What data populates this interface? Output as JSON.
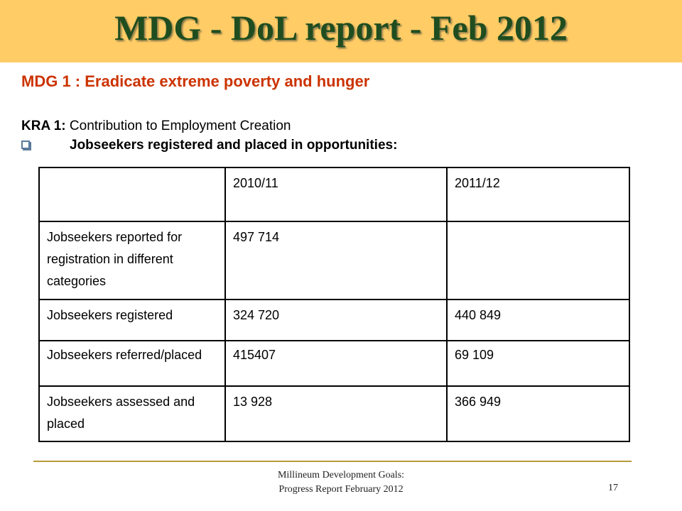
{
  "slide": {
    "title": "MDG - DoL report - Feb 2012",
    "heading": "MDG 1 : Eradicate extreme poverty and hunger",
    "kra_label": "KRA 1:",
    "kra_text": "Contribution to Employment Creation",
    "bullet_text": "Jobseekers registered and placed in opportunities:"
  },
  "table": {
    "headers": [
      "",
      "2010/11",
      "2011/12"
    ],
    "rows": [
      {
        "label": "Jobseekers reported for registration  in different categories",
        "v2010": "497 714",
        "v2011": ""
      },
      {
        "label": "Jobseekers registered",
        "v2010": "324 720",
        "v2011": "440 849"
      },
      {
        "label": "Jobseekers referred/placed",
        "v2010": "415407",
        "v2011": "69 109"
      },
      {
        "label": "Jobseekers assessed and placed",
        "v2010": "13 928",
        "v2011": "366 949"
      }
    ]
  },
  "footer": {
    "line1": "Millineum Development Goals:",
    "line2": "Progress Report  February 2012",
    "page_number": "17"
  },
  "colors": {
    "title_band": "#ffcc66",
    "title_text": "#1f4d1f",
    "heading_text": "#cc3300",
    "footer_rule": "#b89a3a"
  }
}
